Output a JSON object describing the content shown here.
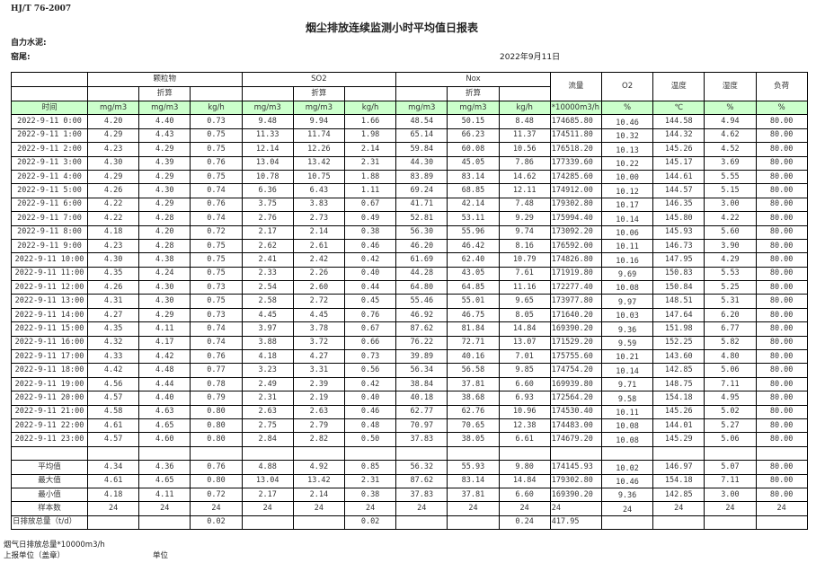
{
  "standard": "HJ/T  76-2007",
  "title": "烟尘排放连续监测小时平均值日报表",
  "company": "自力水泥:",
  "kiln": "窑尾:",
  "date": "2022年9月11日",
  "colors": {
    "unit_row_bg": "#ccffcc",
    "border": "#000000"
  },
  "header": {
    "groups": [
      "颗粒物",
      "SO2",
      "Nox"
    ],
    "converted": "折算",
    "extra": [
      "流量",
      "O2",
      "温度",
      "湿度",
      "负荷"
    ],
    "time": "时间",
    "units": [
      "mg/m3",
      "mg/m3",
      "kg/h",
      "mg/m3",
      "mg/m3",
      "kg/h",
      "mg/m3",
      "mg/m3",
      "kg/h",
      "*10000m3/h",
      "%",
      "℃",
      "%",
      "%"
    ]
  },
  "rows": [
    [
      "2022-9-11  0:00",
      "4.20",
      "4.40",
      "0.73",
      "9.48",
      "9.94",
      "1.66",
      "48.54",
      "50.15",
      "8.48",
      "174685.80",
      "10.46",
      "144.58",
      "4.94",
      "80.00"
    ],
    [
      "2022-9-11  1:00",
      "4.29",
      "4.43",
      "0.75",
      "11.33",
      "11.74",
      "1.98",
      "65.14",
      "66.23",
      "11.37",
      "174511.80",
      "10.32",
      "144.32",
      "4.62",
      "80.00"
    ],
    [
      "2022-9-11  2:00",
      "4.23",
      "4.29",
      "0.75",
      "12.14",
      "12.26",
      "2.14",
      "59.84",
      "60.08",
      "10.56",
      "176518.20",
      "10.13",
      "145.26",
      "4.52",
      "80.00"
    ],
    [
      "2022-9-11  3:00",
      "4.30",
      "4.39",
      "0.76",
      "13.04",
      "13.42",
      "2.31",
      "44.30",
      "45.05",
      "7.86",
      "177339.60",
      "10.22",
      "145.17",
      "3.69",
      "80.00"
    ],
    [
      "2022-9-11  4:00",
      "4.29",
      "4.29",
      "0.75",
      "10.78",
      "10.75",
      "1.88",
      "83.89",
      "83.14",
      "14.62",
      "174285.60",
      "10.00",
      "144.61",
      "5.55",
      "80.00"
    ],
    [
      "2022-9-11  5:00",
      "4.26",
      "4.30",
      "0.74",
      "6.36",
      "6.43",
      "1.11",
      "69.24",
      "68.85",
      "12.11",
      "174912.00",
      "10.12",
      "144.57",
      "5.15",
      "80.00"
    ],
    [
      "2022-9-11  6:00",
      "4.22",
      "4.29",
      "0.76",
      "3.75",
      "3.83",
      "0.67",
      "41.71",
      "42.14",
      "7.48",
      "179302.80",
      "10.17",
      "146.35",
      "3.00",
      "80.00"
    ],
    [
      "2022-9-11  7:00",
      "4.22",
      "4.28",
      "0.74",
      "2.76",
      "2.73",
      "0.49",
      "52.81",
      "53.11",
      "9.29",
      "175994.40",
      "10.14",
      "145.80",
      "4.22",
      "80.00"
    ],
    [
      "2022-9-11  8:00",
      "4.18",
      "4.20",
      "0.72",
      "2.17",
      "2.14",
      "0.38",
      "56.30",
      "55.96",
      "9.74",
      "173092.20",
      "10.06",
      "145.93",
      "5.60",
      "80.00"
    ],
    [
      "2022-9-11  9:00",
      "4.23",
      "4.28",
      "0.75",
      "2.62",
      "2.61",
      "0.46",
      "46.20",
      "46.42",
      "8.16",
      "176592.00",
      "10.11",
      "146.73",
      "3.90",
      "80.00"
    ],
    [
      "2022-9-11 10:00",
      "4.30",
      "4.38",
      "0.75",
      "2.41",
      "2.42",
      "0.42",
      "61.69",
      "62.40",
      "10.79",
      "174826.80",
      "10.16",
      "147.95",
      "4.29",
      "80.00"
    ],
    [
      "2022-9-11 11:00",
      "4.35",
      "4.24",
      "0.75",
      "2.33",
      "2.26",
      "0.40",
      "44.28",
      "43.05",
      "7.61",
      "171919.80",
      "9.69",
      "150.83",
      "5.53",
      "80.00"
    ],
    [
      "2022-9-11 12:00",
      "4.26",
      "4.30",
      "0.73",
      "2.54",
      "2.60",
      "0.44",
      "64.80",
      "64.85",
      "11.16",
      "172277.40",
      "10.08",
      "150.84",
      "5.25",
      "80.00"
    ],
    [
      "2022-9-11 13:00",
      "4.31",
      "4.30",
      "0.75",
      "2.58",
      "2.72",
      "0.45",
      "55.46",
      "55.01",
      "9.65",
      "173977.80",
      "9.97",
      "148.51",
      "5.31",
      "80.00"
    ],
    [
      "2022-9-11 14:00",
      "4.27",
      "4.29",
      "0.73",
      "4.45",
      "4.45",
      "0.76",
      "46.92",
      "46.75",
      "8.05",
      "171640.20",
      "10.03",
      "147.64",
      "6.20",
      "80.00"
    ],
    [
      "2022-9-11 15:00",
      "4.35",
      "4.11",
      "0.74",
      "3.97",
      "3.78",
      "0.67",
      "87.62",
      "81.84",
      "14.84",
      "169390.20",
      "9.36",
      "151.98",
      "6.77",
      "80.00"
    ],
    [
      "2022-9-11 16:00",
      "4.32",
      "4.17",
      "0.74",
      "3.88",
      "3.72",
      "0.66",
      "76.22",
      "72.71",
      "13.07",
      "171529.20",
      "9.59",
      "152.25",
      "5.82",
      "80.00"
    ],
    [
      "2022-9-11 17:00",
      "4.33",
      "4.42",
      "0.76",
      "4.18",
      "4.27",
      "0.73",
      "39.89",
      "40.16",
      "7.01",
      "175755.60",
      "10.21",
      "143.60",
      "4.80",
      "80.00"
    ],
    [
      "2022-9-11 18:00",
      "4.42",
      "4.48",
      "0.77",
      "3.23",
      "3.31",
      "0.56",
      "56.34",
      "56.58",
      "9.85",
      "174754.20",
      "10.14",
      "142.85",
      "5.06",
      "80.00"
    ],
    [
      "2022-9-11 19:00",
      "4.56",
      "4.44",
      "0.78",
      "2.49",
      "2.39",
      "0.42",
      "38.84",
      "37.81",
      "6.60",
      "169939.80",
      "9.71",
      "148.75",
      "7.11",
      "80.00"
    ],
    [
      "2022-9-11 20:00",
      "4.57",
      "4.40",
      "0.79",
      "2.31",
      "2.19",
      "0.40",
      "40.18",
      "38.68",
      "6.93",
      "172564.20",
      "9.58",
      "154.18",
      "4.95",
      "80.00"
    ],
    [
      "2022-9-11 21:00",
      "4.58",
      "4.63",
      "0.80",
      "2.63",
      "2.63",
      "0.46",
      "62.77",
      "62.76",
      "10.96",
      "174530.40",
      "10.11",
      "145.26",
      "5.02",
      "80.00"
    ],
    [
      "2022-9-11 22:00",
      "4.61",
      "4.65",
      "0.80",
      "2.75",
      "2.79",
      "0.48",
      "70.97",
      "70.65",
      "12.38",
      "174483.00",
      "10.08",
      "144.01",
      "5.27",
      "80.00"
    ],
    [
      "2022-9-11 23:00",
      "4.57",
      "4.60",
      "0.80",
      "2.84",
      "2.82",
      "0.50",
      "37.83",
      "38.05",
      "6.61",
      "174679.20",
      "10.08",
      "145.29",
      "5.06",
      "80.00"
    ]
  ],
  "summary": [
    [
      "平均值",
      "4.34",
      "4.36",
      "0.76",
      "4.88",
      "4.92",
      "0.85",
      "56.32",
      "55.93",
      "9.80",
      "174145.93",
      "10.02",
      "146.97",
      "5.07",
      "80.00"
    ],
    [
      "最大值",
      "4.61",
      "4.65",
      "0.80",
      "13.04",
      "13.42",
      "2.31",
      "87.62",
      "83.14",
      "14.84",
      "179302.80",
      "10.46",
      "154.18",
      "7.11",
      "80.00"
    ],
    [
      "最小值",
      "4.18",
      "4.11",
      "0.72",
      "2.17",
      "2.14",
      "0.38",
      "37.83",
      "37.81",
      "6.60",
      "169390.20",
      "9.36",
      "142.85",
      "3.00",
      "80.00"
    ],
    [
      "样本数",
      "24",
      "24",
      "24",
      "24",
      "24",
      "24",
      "24",
      "24",
      "24",
      "24",
      "24",
      "24",
      "24",
      "24"
    ]
  ],
  "daily": [
    "日排放总量（t/d）",
    "",
    "",
    "0.02",
    "",
    "",
    "0.02",
    "",
    "",
    "0.24",
    "417.95",
    "",
    "",
    "",
    ""
  ],
  "footer": {
    "note": "烟气日排放总量*10000m3/h",
    "reporter": "上报单位（盖章）",
    "unit": "单位"
  }
}
